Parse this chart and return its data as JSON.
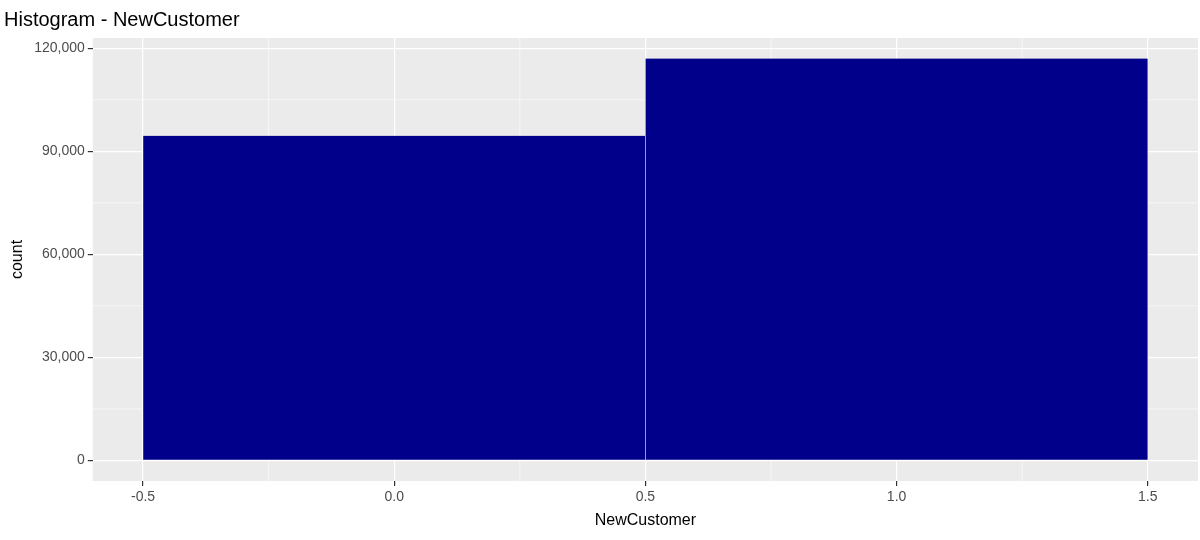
{
  "chart_data": {
    "type": "histogram",
    "title": "Histogram - NewCustomer",
    "xlabel": "NewCustomer",
    "ylabel": "count",
    "bins": [
      -0.5,
      0.5,
      1.5
    ],
    "values": [
      94500,
      117000
    ],
    "color": "#00008b",
    "xlim": [
      -0.6,
      1.6
    ],
    "xticks": [
      {
        "value": -0.5,
        "label": "-0.5"
      },
      {
        "value": 0,
        "label": "0.0"
      },
      {
        "value": 0.5,
        "label": "0.5"
      },
      {
        "value": 1,
        "label": "1.0"
      },
      {
        "value": 1.5,
        "label": "1.5"
      }
    ],
    "ylim": [
      -6000,
      123000
    ],
    "yticks": [
      {
        "value": 0,
        "label": "0"
      },
      {
        "value": 30000,
        "label": "30,000"
      },
      {
        "value": 60000,
        "label": "60,000"
      },
      {
        "value": 90000,
        "label": "90,000"
      },
      {
        "value": 120000,
        "label": "120,000"
      }
    ],
    "grid": true,
    "legend": false
  }
}
